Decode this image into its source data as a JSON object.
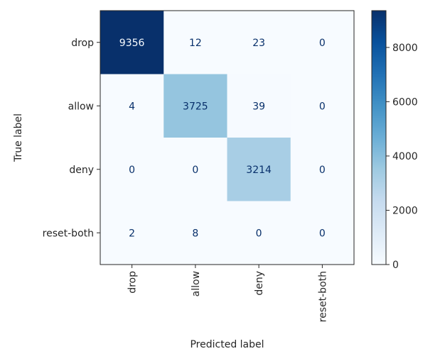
{
  "chart_data": {
    "type": "heatmap",
    "title": "",
    "xlabel": "Predicted label",
    "ylabel": "True label",
    "x_categories": [
      "drop",
      "allow",
      "deny",
      "reset-both"
    ],
    "y_categories": [
      "drop",
      "allow",
      "deny",
      "reset-both"
    ],
    "values": [
      [
        9356,
        12,
        23,
        0
      ],
      [
        4,
        3725,
        39,
        0
      ],
      [
        0,
        0,
        3214,
        0
      ],
      [
        2,
        8,
        0,
        0
      ]
    ],
    "colormap": "Blues",
    "colorbar": {
      "ticks": [
        0,
        2000,
        4000,
        6000,
        8000
      ],
      "range": [
        0,
        9356
      ]
    },
    "colors": {
      "low": "#f7fbff",
      "high": "#08306b",
      "text_on_light": "#08306b",
      "text_on_dark": "#f7fbff"
    }
  }
}
